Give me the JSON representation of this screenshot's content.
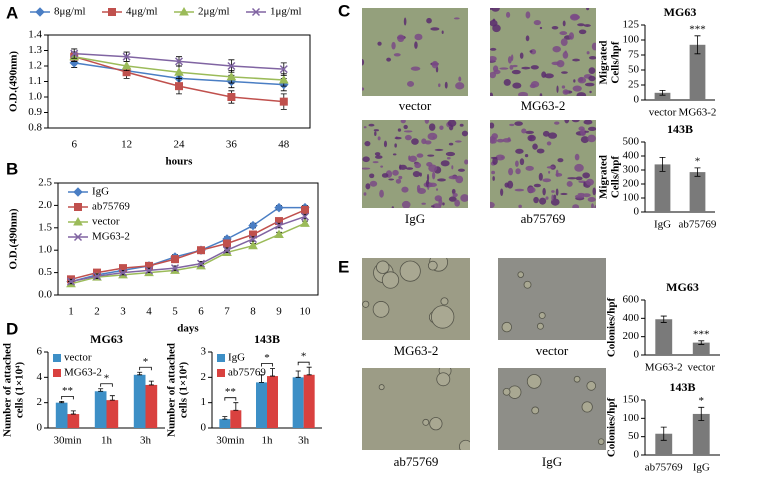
{
  "panel_labels": [
    "A",
    "B",
    "C",
    "D",
    "E"
  ],
  "image_captions": [
    "vector",
    "MG63-2",
    "IgG",
    "ab75769",
    "MG63-2",
    "vector",
    "ab75769",
    "IgG"
  ],
  "chart_data": [
    {
      "type": "line",
      "categories": [
        "6",
        "12",
        "24",
        "36",
        "48"
      ],
      "xlabel": "hours",
      "ylabel": [
        "O.D.(490nm)"
      ],
      "ylim": [
        0.8,
        1.4
      ],
      "yticks": [
        0.8,
        0.9,
        {
          "value": 1,
          "label": "1.0"
        },
        1.1,
        1.2,
        1.3,
        1.4
      ],
      "legend": "top",
      "series": [
        {
          "name": "8μg/ml",
          "color": "#4a7ec4",
          "marker": "diamond",
          "values": [
            1.22,
            1.17,
            1.12,
            1.1,
            1.08
          ],
          "errors": [
            0.03,
            0.03,
            0.04,
            0.04,
            0.04
          ]
        },
        {
          "name": "4μg/ml",
          "color": "#c0504d",
          "marker": "square",
          "values": [
            1.26,
            1.16,
            1.07,
            1.0,
            0.97
          ],
          "errors": [
            0.03,
            0.04,
            0.05,
            0.04,
            0.05
          ]
        },
        {
          "name": "2μg/ml",
          "color": "#9bbb59",
          "marker": "triangle",
          "values": [
            1.26,
            1.2,
            1.16,
            1.13,
            1.11
          ],
          "errors": [
            0.03,
            0.03,
            0.04,
            0.04,
            0.04
          ]
        },
        {
          "name": "1μg/ml",
          "color": "#8064a2",
          "marker": "x",
          "values": [
            1.28,
            1.26,
            1.23,
            1.2,
            1.18
          ],
          "errors": [
            0.03,
            0.03,
            0.03,
            0.04,
            0.04
          ]
        }
      ]
    },
    {
      "type": "line",
      "categories": [
        "1",
        "2",
        "3",
        "4",
        "5",
        "6",
        "7",
        "8",
        "9",
        "10"
      ],
      "xlabel": "days",
      "ylabel": [
        "O.D.(490nm)"
      ],
      "ylim": [
        0,
        2.5
      ],
      "yticks": [
        {
          "value": 0,
          "label": "0.0"
        },
        0.5,
        {
          "value": 1,
          "label": "1.0"
        },
        1.5,
        {
          "value": 2,
          "label": "2.0"
        },
        2.5
      ],
      "legend": "upper left",
      "series": [
        {
          "name": "IgG",
          "color": "#4a7ec4",
          "marker": "diamond",
          "values": [
            0.3,
            0.45,
            0.55,
            0.65,
            0.85,
            1.0,
            1.25,
            1.55,
            1.95,
            1.95
          ],
          "errors": [
            0.05,
            0.05,
            0.05,
            0.05,
            0.05,
            0.05,
            0.05,
            0.05,
            0.05,
            0.05
          ]
        },
        {
          "name": "ab75769",
          "color": "#c0504d",
          "marker": "square",
          "values": [
            0.35,
            0.5,
            0.6,
            0.65,
            0.8,
            1.0,
            1.15,
            1.35,
            1.65,
            1.9
          ],
          "errors": [
            0.05,
            0.05,
            0.05,
            0.05,
            0.05,
            0.05,
            0.05,
            0.05,
            0.05,
            0.08
          ]
        },
        {
          "name": "vector",
          "color": "#9bbb59",
          "marker": "triangle",
          "values": [
            0.25,
            0.4,
            0.45,
            0.5,
            0.55,
            0.65,
            0.95,
            1.1,
            1.35,
            1.6
          ],
          "errors": [
            0.05,
            0.05,
            0.05,
            0.05,
            0.05,
            0.05,
            0.05,
            0.05,
            0.05,
            0.05
          ]
        },
        {
          "name": "MG63-2",
          "color": "#8064a2",
          "marker": "x",
          "values": [
            0.3,
            0.42,
            0.5,
            0.55,
            0.6,
            0.7,
            1.0,
            1.25,
            1.55,
            1.75
          ],
          "errors": [
            0.05,
            0.05,
            0.05,
            0.05,
            0.05,
            0.05,
            0.05,
            0.05,
            0.05,
            0.05
          ]
        }
      ]
    },
    {
      "type": "bar",
      "title": "MG63",
      "categories": [
        "vector",
        "MG63-2"
      ],
      "ylabel": [
        "Migrated",
        "Cells/hpf"
      ],
      "color": "#7a7a7a",
      "ylim": [
        0,
        125
      ],
      "yticks": [
        0,
        25,
        50,
        75,
        100,
        125
      ],
      "values": [
        12,
        92
      ],
      "errors": [
        4,
        15
      ],
      "annotations": [
        null,
        "***"
      ]
    },
    {
      "type": "bar",
      "title": "143B",
      "categories": [
        "IgG",
        "ab75769"
      ],
      "ylabel": [
        "Migrated",
        "Cells/hpf"
      ],
      "color": "#7a7a7a",
      "ylim": [
        0,
        500
      ],
      "yticks": [
        0,
        100,
        200,
        300,
        400,
        500
      ],
      "values": [
        340,
        285
      ],
      "errors": [
        50,
        30
      ],
      "annotations": [
        null,
        "*"
      ]
    },
    {
      "type": "bar",
      "title": "MG63",
      "categories": [
        "30min",
        "1h",
        "3h"
      ],
      "ylabel": [
        "Number of attached",
        "cells (1×10⁴)"
      ],
      "ylim": [
        0,
        6
      ],
      "yticks": [
        0,
        2,
        4,
        6
      ],
      "legend": "upper left",
      "annotations": [
        "**",
        "*",
        "*"
      ],
      "series": [
        {
          "name": "vector",
          "color": "#3d8fc6",
          "values": [
            2.0,
            2.9,
            4.2
          ],
          "errors": [
            0.1,
            0.2,
            0.2
          ]
        },
        {
          "name": "MG63-2",
          "color": "#d9413f",
          "values": [
            1.1,
            2.2,
            3.4
          ],
          "errors": [
            0.25,
            0.35,
            0.3
          ]
        }
      ]
    },
    {
      "type": "bar",
      "title": "143B",
      "categories": [
        "30min",
        "1h",
        "3h"
      ],
      "ylabel": [
        "Number of attached",
        "cells (1×10⁴)"
      ],
      "ylim": [
        0,
        3
      ],
      "yticks": [
        0,
        1,
        2,
        3
      ],
      "legend": "upper left",
      "annotations": [
        "**",
        "*",
        "*"
      ],
      "series": [
        {
          "name": "IgG",
          "color": "#3d8fc6",
          "values": [
            0.35,
            1.8,
            2.0
          ],
          "errors": [
            0.1,
            0.3,
            0.25
          ]
        },
        {
          "name": "ab75769",
          "color": "#d9413f",
          "values": [
            0.7,
            2.05,
            2.1
          ],
          "errors": [
            0.3,
            0.3,
            0.3
          ]
        }
      ]
    },
    {
      "type": "bar",
      "title": "MG63",
      "categories": [
        "MG63-2",
        "vector"
      ],
      "ylabel": [
        "Colonies/hpf"
      ],
      "color": "#7a7a7a",
      "ylim": [
        0,
        600
      ],
      "yticks": [
        0,
        200,
        400,
        600
      ],
      "values": [
        390,
        135
      ],
      "errors": [
        35,
        20
      ],
      "annotations": [
        null,
        "***"
      ]
    },
    {
      "type": "bar",
      "title": "143B",
      "categories": [
        "ab75769",
        "IgG"
      ],
      "ylabel": [
        "Colonies/hpf"
      ],
      "color": "#7a7a7a",
      "ylim": [
        0,
        150
      ],
      "yticks": [
        0,
        50,
        100,
        150
      ],
      "values": [
        58,
        112
      ],
      "errors": [
        18,
        18
      ],
      "annotations": [
        null,
        "*"
      ]
    }
  ]
}
